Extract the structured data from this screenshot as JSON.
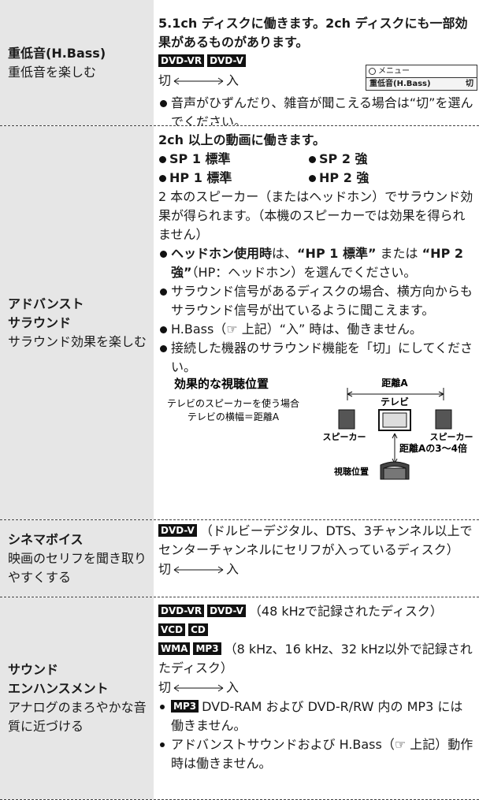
{
  "rows": [
    {
      "title": "重低音(H.Bass)",
      "subtitle": "重低音を楽しむ",
      "lead": "5.1ch ディスクに働きます。2ch ディスクにも一部効果があるものがあります。",
      "badges": [
        "DVD-VR",
        "DVD-V"
      ],
      "switch": [
        "切",
        "入"
      ],
      "menu": {
        "header": "メニュー",
        "item": "重低音(H.Bass)",
        "value": "切"
      },
      "notes": [
        "音声がひずんだり、雑音が聞こえる場合は“切”を選んでください。"
      ]
    },
    {
      "title_lines": [
        "アドバンスト",
        "サラウンド"
      ],
      "subtitle": "サラウンド効果を楽しむ",
      "lead": "2ch 以上の動画に働きます。",
      "modes": [
        "SP 1 標準",
        "SP 2 強",
        "HP 1 標準",
        "HP 2 強"
      ],
      "paragraph": "2 本のスピーカー（またはヘッドホン）でサラウンド効果が得られます。（本機のスピーカーでは効果を得られません）",
      "headphone_note": [
        "ヘッドホン使用時",
        "は、",
        "“HP 1 標準”",
        " または ",
        "“HP 2 強”",
        "（HP：ヘッドホン）を選んでください。"
      ],
      "notes": [
        "サラウンド信号があるディスクの場合、横方向からもサラウンド信号が出ているように聞こえます。",
        "H.Bass（☞ 上記）“入” 時は、働きません。",
        "接続した機器のサラウンド機能を「切」にしてください。"
      ],
      "figure": {
        "title": "効果的な視聴位置",
        "caption": [
          "テレビのスピーカーを使う場合",
          "テレビの横幅＝距離A"
        ],
        "distance": "距離A",
        "tv": "テレビ",
        "speakers": [
          "スピーカー",
          "スピーカー"
        ],
        "listening_distance": "距離Aの3～4倍",
        "position": "視聴位置"
      }
    },
    {
      "title": "シネマボイス",
      "subtitle": "映画のセリフを聞き取りやすくする",
      "badges": [
        "DVD-V"
      ],
      "text": "（ドルビーデジタル、DTS、3チャンネル以上でセンターチャンネルにセリフが入っているディスク）",
      "switch": [
        "切",
        "入"
      ]
    },
    {
      "title_lines": [
        "サウンド",
        "エンハンスメント"
      ],
      "subtitle": "アナログのまろやかな音質に近づける",
      "formats": [
        {
          "badges": [
            "DVD-VR",
            "DVD-V"
          ],
          "text": "（48 kHzで記録されたディスク）"
        },
        {
          "badges": [
            "VCD",
            "CD"
          ]
        },
        {
          "badges": [
            "WMA",
            "MP3"
          ],
          "text": "（8 kHz、16 kHz、32 kHz以外で記録されたディスク）"
        }
      ],
      "switch": [
        "切",
        "入"
      ],
      "notes": [
        {
          "badge": "MP3",
          "text": "DVD-RAM および DVD-R/RW 内の MP3 には働きません。"
        },
        {
          "text": "アドバンストサウンドおよび H.Bass（☞ 上記）動作時は働きません。"
        }
      ]
    }
  ]
}
